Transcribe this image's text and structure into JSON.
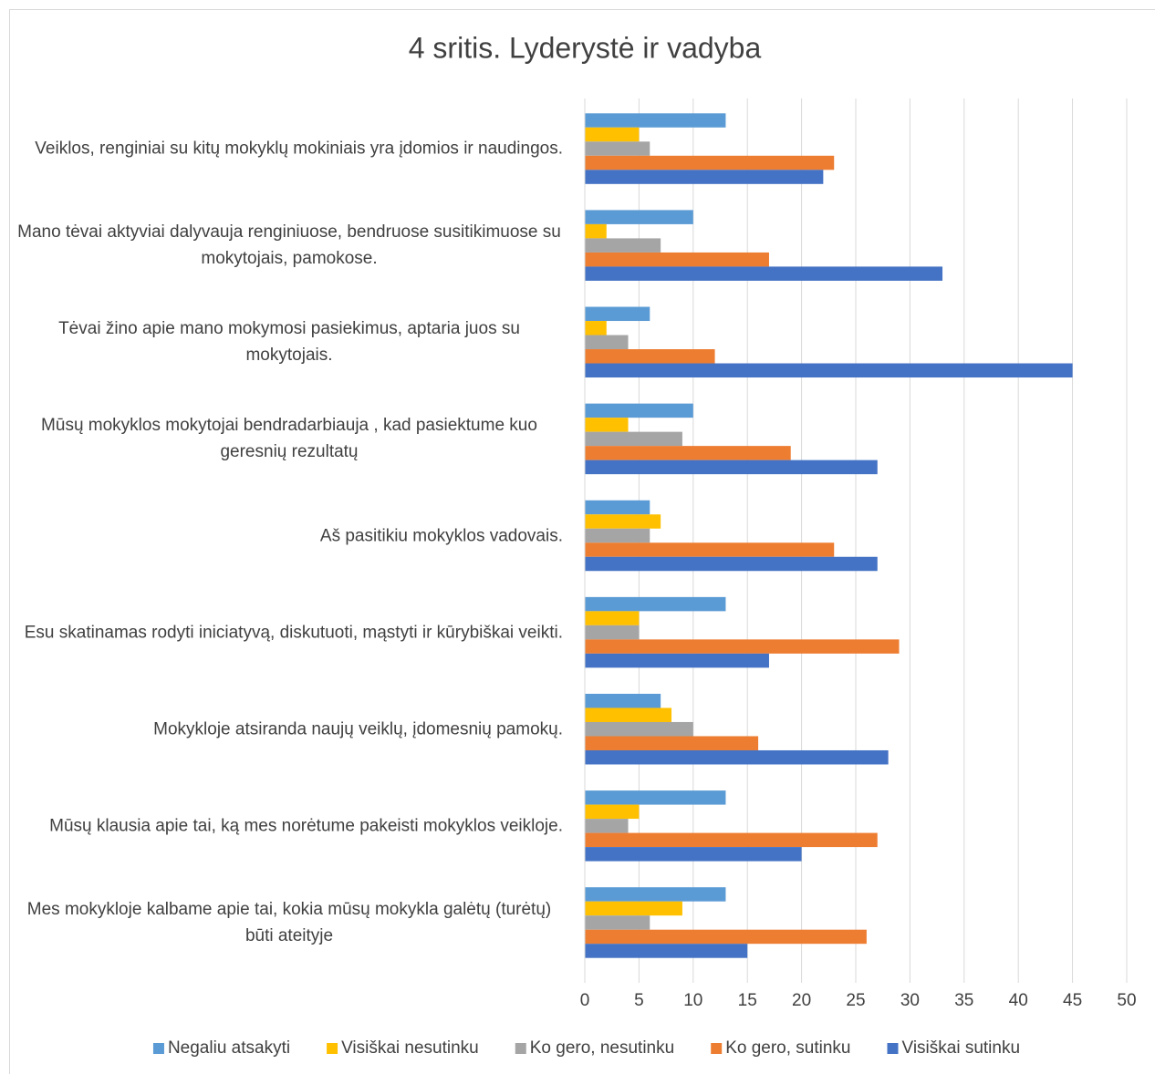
{
  "chart_data": {
    "type": "bar",
    "orientation": "horizontal",
    "title": "4 sritis. Lyderystė ir vadyba",
    "categories": [
      "Veiklos, renginiai su kitų mokyklų mokiniais yra įdomios ir naudingos.",
      "Mano tėvai aktyviai dalyvauja renginiuose, bendruose susitikimuose su mokytojais, pamokose.",
      "Tėvai žino apie mano mokymosi pasiekimus, aptaria juos su mokytojais.",
      "Mūsų mokyklos mokytojai bendradarbiauja , kad pasiektume kuo geresnių rezultatų",
      "Aš pasitikiu mokyklos vadovais.",
      "Esu skatinamas rodyti iniciatyvą, diskutuoti, mąstyti ir kūrybiškai veikti.",
      "Mokykloje atsiranda naujų veiklų, įdomesnių pamokų.",
      "Mūsų klausia  apie tai, ką mes norėtume pakeisti mokyklos veikloje.",
      "Mes mokykloje kalbame apie tai, kokia mūsų mokykla galėtų (turėtų) būti ateityje"
    ],
    "series": [
      {
        "name": "Negaliu atsakyti",
        "color": "#5b9bd5",
        "values": [
          13,
          10,
          6,
          10,
          6,
          13,
          7,
          13,
          13
        ]
      },
      {
        "name": "Visiškai nesutinku",
        "color": "#ffc000",
        "values": [
          5,
          2,
          2,
          4,
          7,
          5,
          8,
          5,
          9
        ]
      },
      {
        "name": "Ko gero, nesutinku",
        "color": "#a5a5a5",
        "values": [
          6,
          7,
          4,
          9,
          6,
          5,
          10,
          4,
          6
        ]
      },
      {
        "name": "Ko gero, sutinku",
        "color": "#ed7d31",
        "values": [
          23,
          17,
          12,
          19,
          23,
          29,
          16,
          27,
          26
        ]
      },
      {
        "name": "Visiškai sutinku",
        "color": "#4472c4",
        "values": [
          22,
          33,
          45,
          27,
          27,
          17,
          28,
          20,
          15
        ]
      }
    ],
    "xlim": [
      0,
      50
    ],
    "xticks": [
      0,
      5,
      10,
      15,
      20,
      25,
      30,
      35,
      40,
      45,
      50
    ],
    "grid": true,
    "legend": "bottom"
  }
}
